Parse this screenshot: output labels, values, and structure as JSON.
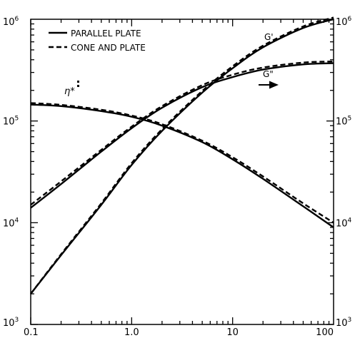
{
  "chart_data": {
    "type": "line",
    "x_scale": "log",
    "y_scale": "log",
    "xlim": [
      0.1,
      100
    ],
    "ylim": [
      1000,
      1000000
    ],
    "x_ticks": [
      {
        "value": 0.1,
        "label": "0.1"
      },
      {
        "value": 1,
        "label": "1.0"
      },
      {
        "value": 10,
        "label": "10"
      },
      {
        "value": 100,
        "label": "100"
      }
    ],
    "y_ticks": [
      {
        "value": 1000,
        "base": "10",
        "exp": "3"
      },
      {
        "value": 10000,
        "base": "10",
        "exp": "4"
      },
      {
        "value": 100000,
        "base": "10",
        "exp": "5"
      },
      {
        "value": 1000000,
        "base": "10",
        "exp": "6"
      }
    ],
    "legend": {
      "placement": "top-left",
      "entries": [
        {
          "label": "PARALLEL PLATE",
          "style": "solid"
        },
        {
          "label": "CONE AND PLATE",
          "style": "dashed"
        }
      ]
    },
    "annotations": [
      {
        "text": "G'",
        "near": "G' curve, upper right"
      },
      {
        "text": "G\"",
        "near": "G\" curve, right, with arrow"
      },
      {
        "text": "η*",
        "near": "η* curve, left"
      }
    ],
    "series": [
      {
        "curve": "G'",
        "style": "solid",
        "x": [
          0.1,
          0.2,
          0.5,
          1,
          2,
          5,
          10,
          20,
          50,
          100
        ],
        "y": [
          2000,
          4800,
          15000,
          37000,
          80000,
          190000,
          330000,
          530000,
          820000,
          1000000
        ]
      },
      {
        "curve": "G'",
        "style": "dashed",
        "x": [
          0.1,
          0.2,
          0.5,
          1,
          2,
          5,
          10,
          20,
          50,
          100
        ],
        "y": [
          2000,
          4900,
          15500,
          38500,
          83000,
          197000,
          345000,
          550000,
          850000,
          1040000
        ]
      },
      {
        "curve": "G\"",
        "style": "solid",
        "x": [
          0.1,
          0.2,
          0.5,
          1,
          2,
          5,
          10,
          20,
          50,
          100
        ],
        "y": [
          14000,
          24000,
          50000,
          85000,
          135000,
          215000,
          270000,
          320000,
          360000,
          370000
        ]
      },
      {
        "curve": "G\"",
        "style": "dashed",
        "x": [
          0.1,
          0.2,
          0.5,
          1,
          2,
          5,
          10,
          20,
          50,
          100
        ],
        "y": [
          15000,
          25500,
          52000,
          88000,
          140000,
          225000,
          285000,
          335000,
          375000,
          385000
        ]
      },
      {
        "curve": "η*",
        "style": "solid",
        "x": [
          0.1,
          0.2,
          0.5,
          1,
          2,
          5,
          10,
          20,
          50,
          100
        ],
        "y": [
          145000,
          140000,
          125000,
          110000,
          90000,
          62000,
          42000,
          27000,
          14500,
          9000
        ]
      },
      {
        "curve": "η*",
        "style": "dashed",
        "x": [
          0.1,
          0.2,
          0.5,
          1,
          2,
          5,
          10,
          20,
          50,
          100
        ],
        "y": [
          150000,
          144000,
          129000,
          113000,
          93000,
          64000,
          44000,
          28500,
          15500,
          10000
        ]
      }
    ]
  }
}
